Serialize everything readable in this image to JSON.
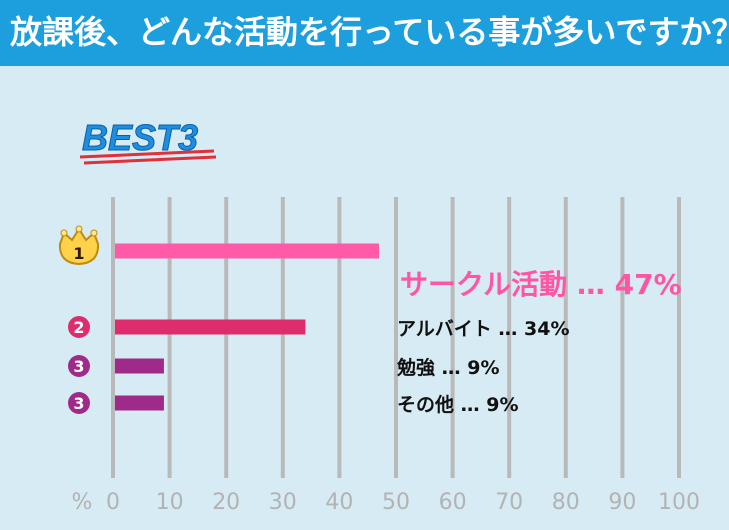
{
  "header": {
    "title": "放課後、どんな活動を行っている事が多いですか？"
  },
  "badge": {
    "label": "BEST3"
  },
  "chart_data": {
    "type": "bar",
    "orientation": "horizontal",
    "xlim": [
      0,
      100
    ],
    "x_unit_label": "%",
    "ticks": [
      0,
      10,
      20,
      30,
      40,
      50,
      60,
      70,
      80,
      90,
      100
    ],
    "grid": true,
    "items": [
      {
        "rank": "1",
        "category": "サークル活動",
        "value": 47,
        "value_label": "47%",
        "color": "#ff5aa8",
        "label_color": "#ff55a4",
        "separator": "…"
      },
      {
        "rank": "2",
        "category": "アルバイト",
        "value": 34,
        "value_label": "34%",
        "color": "#de2c6c",
        "label_color": "#111111",
        "separator": "…"
      },
      {
        "rank": "3",
        "category": "勉強",
        "value": 9,
        "value_label": "9%",
        "color": "#9e2a8a",
        "label_color": "#111111",
        "separator": "…"
      },
      {
        "rank": "3",
        "category": "その他",
        "value": 9,
        "value_label": "9%",
        "color": "#9e2a8a",
        "label_color": "#111111",
        "separator": "…"
      }
    ]
  }
}
